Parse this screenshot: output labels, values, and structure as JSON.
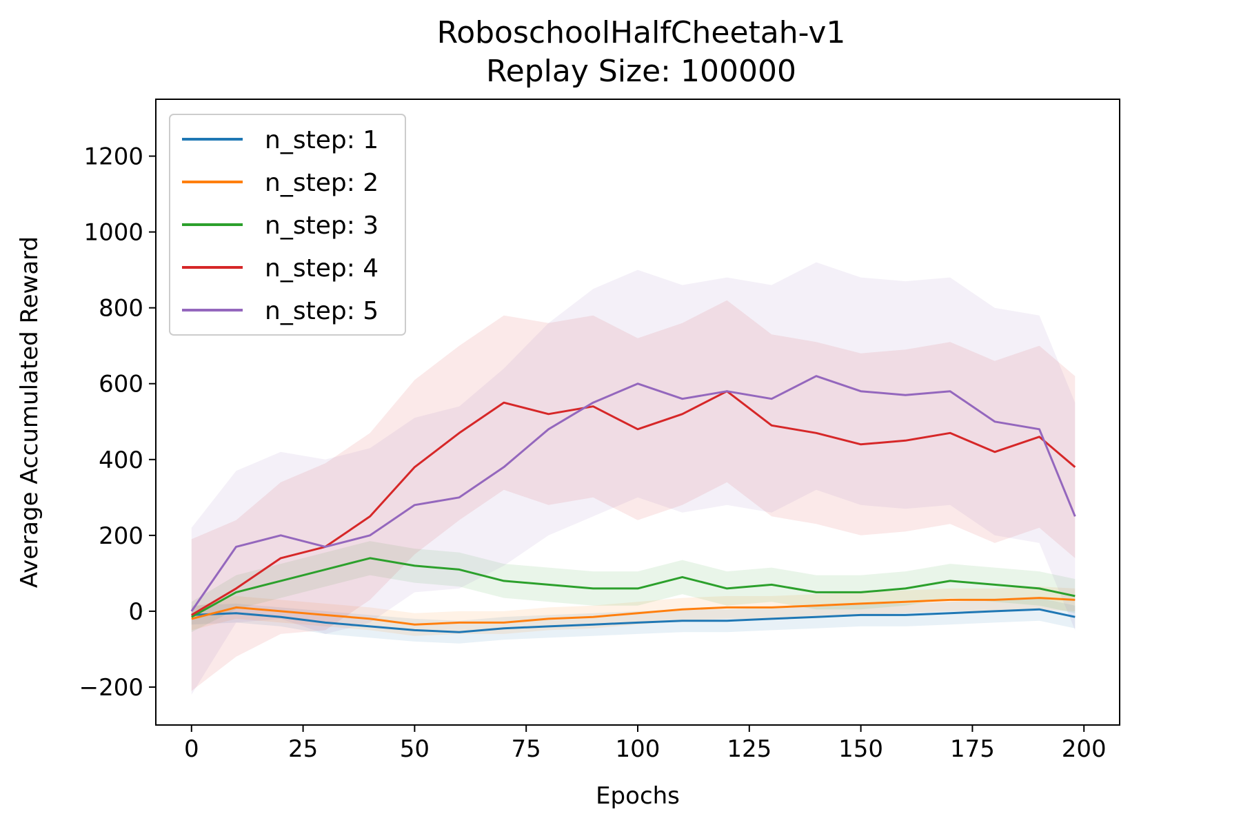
{
  "chart_data": {
    "type": "line",
    "title": "RoboschoolHalfCheetah-v1",
    "subtitle": "Replay Size: 100000",
    "xlabel": "Epochs",
    "ylabel": "Average Accumulated Reward",
    "xlim": [
      -8,
      208
    ],
    "ylim": [
      -300,
      1350
    ],
    "xticks": [
      0,
      25,
      50,
      75,
      100,
      125,
      150,
      175,
      200
    ],
    "yticks": [
      -200,
      0,
      200,
      400,
      600,
      800,
      1000,
      1200
    ],
    "x_tick_labels": [
      "0",
      "25",
      "50",
      "75",
      "100",
      "125",
      "150",
      "175",
      "200"
    ],
    "y_tick_labels": [
      "−200",
      "0",
      "200",
      "400",
      "600",
      "800",
      "1000",
      "1200"
    ],
    "grid": false,
    "legend_position": "top-left",
    "shaded_bands": true,
    "series": [
      {
        "name": "n_step: 1",
        "color": "#1f77b4",
        "x": [
          0,
          10,
          20,
          30,
          40,
          50,
          60,
          70,
          80,
          90,
          100,
          110,
          120,
          130,
          140,
          150,
          160,
          170,
          180,
          190,
          198
        ],
        "values": [
          -10,
          -5,
          -15,
          -30,
          -40,
          -50,
          -55,
          -45,
          -40,
          -35,
          -30,
          -25,
          -25,
          -20,
          -15,
          -10,
          -10,
          -5,
          0,
          5,
          -15
        ],
        "band": [
          25,
          25,
          25,
          30,
          30,
          30,
          30,
          30,
          30,
          30,
          30,
          30,
          30,
          30,
          30,
          30,
          30,
          30,
          30,
          30,
          30
        ]
      },
      {
        "name": "n_step: 2",
        "color": "#ff7f0e",
        "x": [
          0,
          10,
          20,
          30,
          40,
          50,
          60,
          70,
          80,
          90,
          100,
          110,
          120,
          130,
          140,
          150,
          160,
          170,
          180,
          190,
          198
        ],
        "values": [
          -20,
          10,
          0,
          -10,
          -20,
          -35,
          -30,
          -30,
          -20,
          -15,
          -5,
          5,
          10,
          10,
          15,
          20,
          25,
          30,
          30,
          35,
          30
        ],
        "band": [
          30,
          30,
          30,
          30,
          30,
          30,
          30,
          30,
          30,
          30,
          30,
          30,
          30,
          30,
          30,
          30,
          30,
          30,
          30,
          30,
          30
        ]
      },
      {
        "name": "n_step: 3",
        "color": "#2ca02c",
        "x": [
          0,
          10,
          20,
          30,
          40,
          50,
          60,
          70,
          80,
          90,
          100,
          110,
          120,
          130,
          140,
          150,
          160,
          170,
          180,
          190,
          198
        ],
        "values": [
          -15,
          50,
          80,
          110,
          140,
          120,
          110,
          80,
          70,
          60,
          60,
          90,
          60,
          70,
          50,
          50,
          60,
          80,
          70,
          60,
          40
        ],
        "band": [
          40,
          45,
          45,
          45,
          45,
          45,
          45,
          45,
          45,
          45,
          45,
          45,
          45,
          45,
          45,
          45,
          45,
          45,
          45,
          45,
          45
        ]
      },
      {
        "name": "n_step: 4",
        "color": "#d62728",
        "x": [
          0,
          10,
          20,
          30,
          40,
          50,
          60,
          70,
          80,
          90,
          100,
          110,
          120,
          130,
          140,
          150,
          160,
          170,
          180,
          190,
          198
        ],
        "values": [
          -10,
          60,
          140,
          170,
          250,
          380,
          470,
          550,
          520,
          540,
          480,
          520,
          580,
          490,
          470,
          440,
          450,
          470,
          420,
          460,
          380
        ],
        "band": [
          200,
          180,
          200,
          220,
          220,
          230,
          230,
          230,
          240,
          240,
          240,
          240,
          240,
          240,
          240,
          240,
          240,
          240,
          240,
          240,
          240
        ]
      },
      {
        "name": "n_step: 5",
        "color": "#9467bd",
        "x": [
          0,
          10,
          20,
          30,
          40,
          50,
          60,
          70,
          80,
          90,
          100,
          110,
          120,
          130,
          140,
          150,
          160,
          170,
          180,
          190,
          198
        ],
        "values": [
          0,
          170,
          200,
          170,
          200,
          280,
          300,
          380,
          480,
          550,
          600,
          560,
          580,
          560,
          620,
          580,
          570,
          580,
          500,
          480,
          250
        ],
        "band": [
          220,
          200,
          220,
          230,
          230,
          230,
          240,
          260,
          280,
          300,
          300,
          300,
          300,
          300,
          300,
          300,
          300,
          300,
          300,
          300,
          300
        ]
      }
    ]
  }
}
